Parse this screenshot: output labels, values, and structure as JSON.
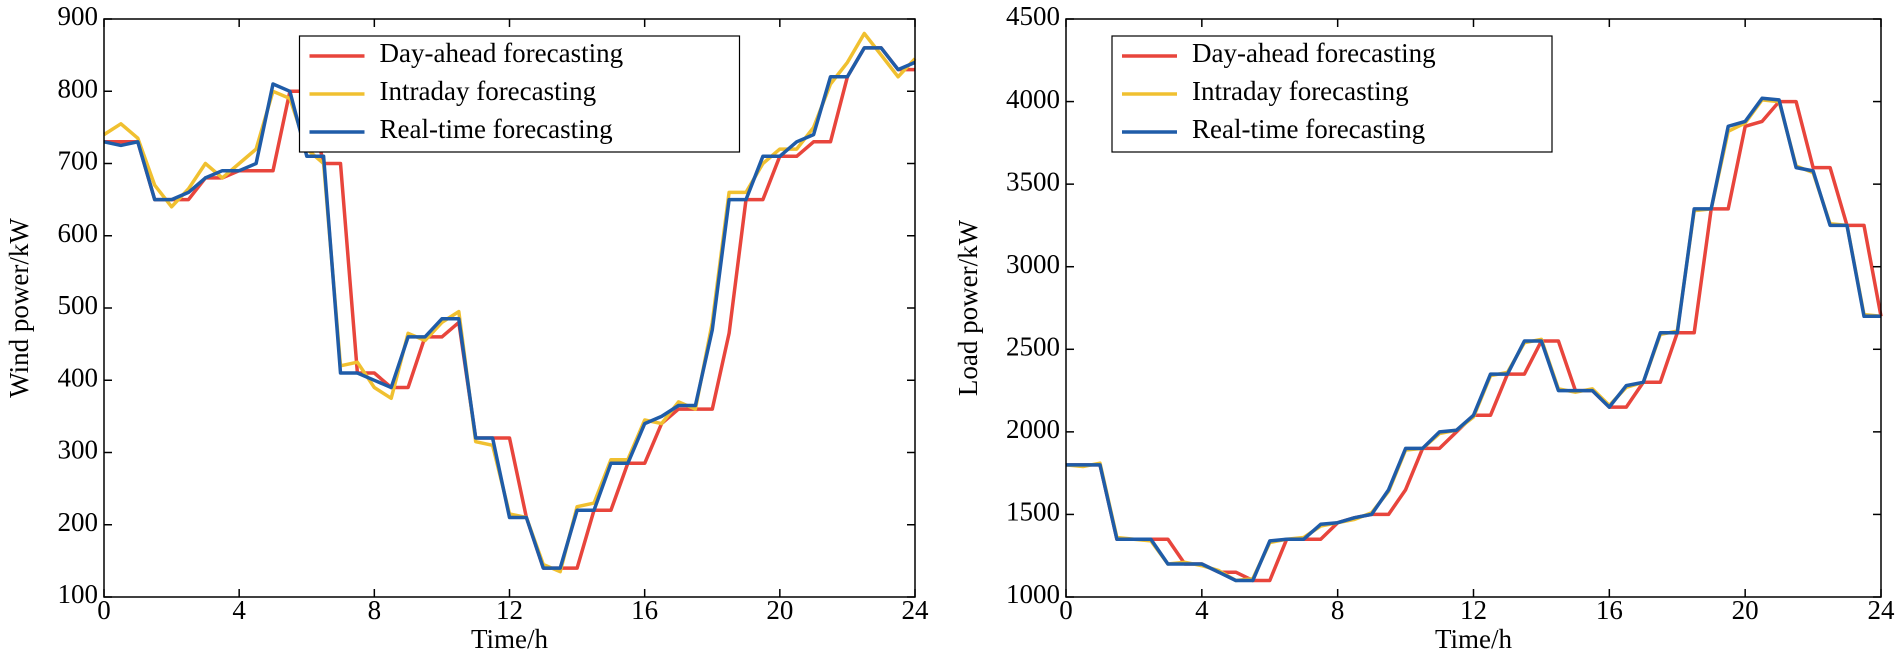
{
  "chart_data": [
    {
      "type": "line",
      "xlabel": "Time/h",
      "ylabel": "Wind power/kW",
      "xlim": [
        0,
        24
      ],
      "xticks": [
        0,
        4,
        8,
        12,
        16,
        20,
        24
      ],
      "ylim": [
        100,
        900
      ],
      "yticks": [
        100,
        200,
        300,
        400,
        500,
        600,
        700,
        800,
        900
      ],
      "legend": "upper center",
      "x": [
        0,
        0.5,
        1,
        1.5,
        2,
        2.5,
        3,
        3.5,
        4,
        4.5,
        5,
        5.5,
        6,
        6.5,
        7,
        7.5,
        8,
        8.5,
        9,
        9.5,
        10,
        10.5,
        11,
        11.5,
        12,
        12.5,
        13,
        13.5,
        14,
        14.5,
        15,
        15.5,
        16,
        16.5,
        17,
        17.5,
        18,
        18.5,
        19,
        19.5,
        20,
        20.5,
        21,
        21.5,
        22,
        22.5,
        23,
        23.5,
        24
      ],
      "series": [
        {
          "name": "Day-ahead forecasting",
          "color": "#e8453c",
          "values": [
            730,
            730,
            730,
            650,
            650,
            650,
            680,
            680,
            690,
            690,
            690,
            800,
            800,
            700,
            700,
            410,
            410,
            390,
            390,
            460,
            460,
            480,
            320,
            320,
            320,
            210,
            140,
            140,
            140,
            220,
            220,
            285,
            285,
            340,
            360,
            360,
            360,
            465,
            650,
            650,
            710,
            710,
            730,
            730,
            820,
            860,
            860,
            830,
            830
          ]
        },
        {
          "name": "Intraday forecasting",
          "color": "#f0c030",
          "values": [
            740,
            755,
            735,
            670,
            640,
            665,
            700,
            680,
            700,
            720,
            800,
            790,
            720,
            700,
            420,
            425,
            390,
            375,
            465,
            455,
            480,
            495,
            315,
            310,
            215,
            210,
            145,
            135,
            225,
            230,
            290,
            290,
            345,
            340,
            370,
            360,
            480,
            660,
            660,
            700,
            720,
            720,
            750,
            810,
            840,
            880,
            850,
            820,
            845
          ]
        },
        {
          "name": "Real-time forecasting",
          "color": "#1f5ca8",
          "values": [
            730,
            725,
            730,
            650,
            650,
            660,
            680,
            690,
            690,
            700,
            810,
            800,
            710,
            710,
            410,
            410,
            400,
            390,
            460,
            460,
            485,
            485,
            320,
            320,
            210,
            210,
            140,
            140,
            220,
            220,
            285,
            285,
            340,
            350,
            365,
            365,
            470,
            650,
            650,
            710,
            710,
            730,
            740,
            820,
            820,
            860,
            860,
            830,
            840
          ]
        }
      ]
    },
    {
      "type": "line",
      "xlabel": "Time/h",
      "ylabel": "Load power/kW",
      "xlim": [
        0,
        24
      ],
      "xticks": [
        0,
        4,
        8,
        12,
        16,
        20,
        24
      ],
      "ylim": [
        1000,
        4500
      ],
      "yticks": [
        1000,
        1500,
        2000,
        2500,
        3000,
        3500,
        4000,
        4500
      ],
      "legend": "upper left",
      "x": [
        0,
        0.5,
        1,
        1.5,
        2,
        2.5,
        3,
        3.5,
        4,
        4.5,
        5,
        5.5,
        6,
        6.5,
        7,
        7.5,
        8,
        8.5,
        9,
        9.5,
        10,
        10.5,
        11,
        11.5,
        12,
        12.5,
        13,
        13.5,
        14,
        14.5,
        15,
        15.5,
        16,
        16.5,
        17,
        17.5,
        18,
        18.5,
        19,
        19.5,
        20,
        20.5,
        21,
        21.5,
        22,
        22.5,
        23,
        23.5,
        24
      ],
      "series": [
        {
          "name": "Day-ahead forecasting",
          "color": "#e8453c",
          "values": [
            1800,
            1800,
            1800,
            1350,
            1350,
            1350,
            1350,
            1200,
            1200,
            1150,
            1150,
            1100,
            1100,
            1350,
            1350,
            1350,
            1450,
            1480,
            1500,
            1500,
            1650,
            1900,
            1900,
            2000,
            2100,
            2100,
            2350,
            2350,
            2550,
            2550,
            2250,
            2250,
            2150,
            2150,
            2300,
            2300,
            2600,
            2600,
            3350,
            3350,
            3850,
            3880,
            4000,
            4000,
            3600,
            3600,
            3250,
            3250,
            2700
          ]
        },
        {
          "name": "Intraday forecasting",
          "color": "#f0c030",
          "values": [
            1800,
            1790,
            1810,
            1360,
            1350,
            1340,
            1200,
            1210,
            1190,
            1160,
            1100,
            1110,
            1330,
            1350,
            1360,
            1430,
            1450,
            1470,
            1510,
            1640,
            1890,
            1900,
            1990,
            2010,
            2090,
            2340,
            2360,
            2540,
            2560,
            2260,
            2240,
            2260,
            2160,
            2270,
            2300,
            2590,
            2610,
            3340,
            3350,
            3820,
            3870,
            4010,
            4000,
            3610,
            3570,
            3260,
            3250,
            2710,
            2700
          ]
        },
        {
          "name": "Real-time forecasting",
          "color": "#1f5ca8",
          "values": [
            1800,
            1800,
            1800,
            1350,
            1350,
            1350,
            1200,
            1200,
            1200,
            1150,
            1100,
            1100,
            1340,
            1350,
            1350,
            1440,
            1450,
            1480,
            1500,
            1650,
            1900,
            1900,
            2000,
            2010,
            2100,
            2350,
            2350,
            2550,
            2550,
            2250,
            2250,
            2250,
            2150,
            2280,
            2300,
            2600,
            2600,
            3350,
            3350,
            3850,
            3880,
            4020,
            4010,
            3600,
            3580,
            3250,
            3250,
            2700,
            2700
          ]
        }
      ]
    }
  ]
}
